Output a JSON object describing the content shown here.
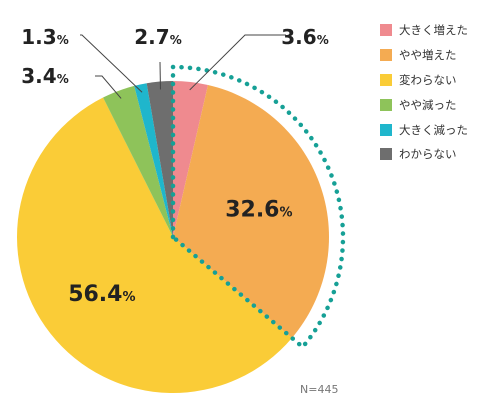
{
  "chart_data": {
    "type": "pie",
    "categories": [
      "大きく増えた",
      "やや増えた",
      "変わらない",
      "やや減った",
      "大きく減った",
      "わからない"
    ],
    "values": [
      3.6,
      32.6,
      56.4,
      3.4,
      1.3,
      2.7
    ],
    "value_labels": [
      "3.6",
      "32.6",
      "56.4",
      "3.4",
      "1.3",
      "2.7"
    ],
    "unit": "%",
    "colors": [
      "#ef8a8f",
      "#f4ab52",
      "#facc37",
      "#8ec35a",
      "#1fb6cc",
      "#6e6e6e"
    ],
    "start_angle_deg": 0,
    "direction": "clockwise",
    "highlight": {
      "categories": [
        "大きく増えた",
        "やや増えた"
      ],
      "style": "dotted-outline",
      "color": "#16a096"
    },
    "legend": {
      "placement": "right"
    },
    "note": "N=445"
  }
}
